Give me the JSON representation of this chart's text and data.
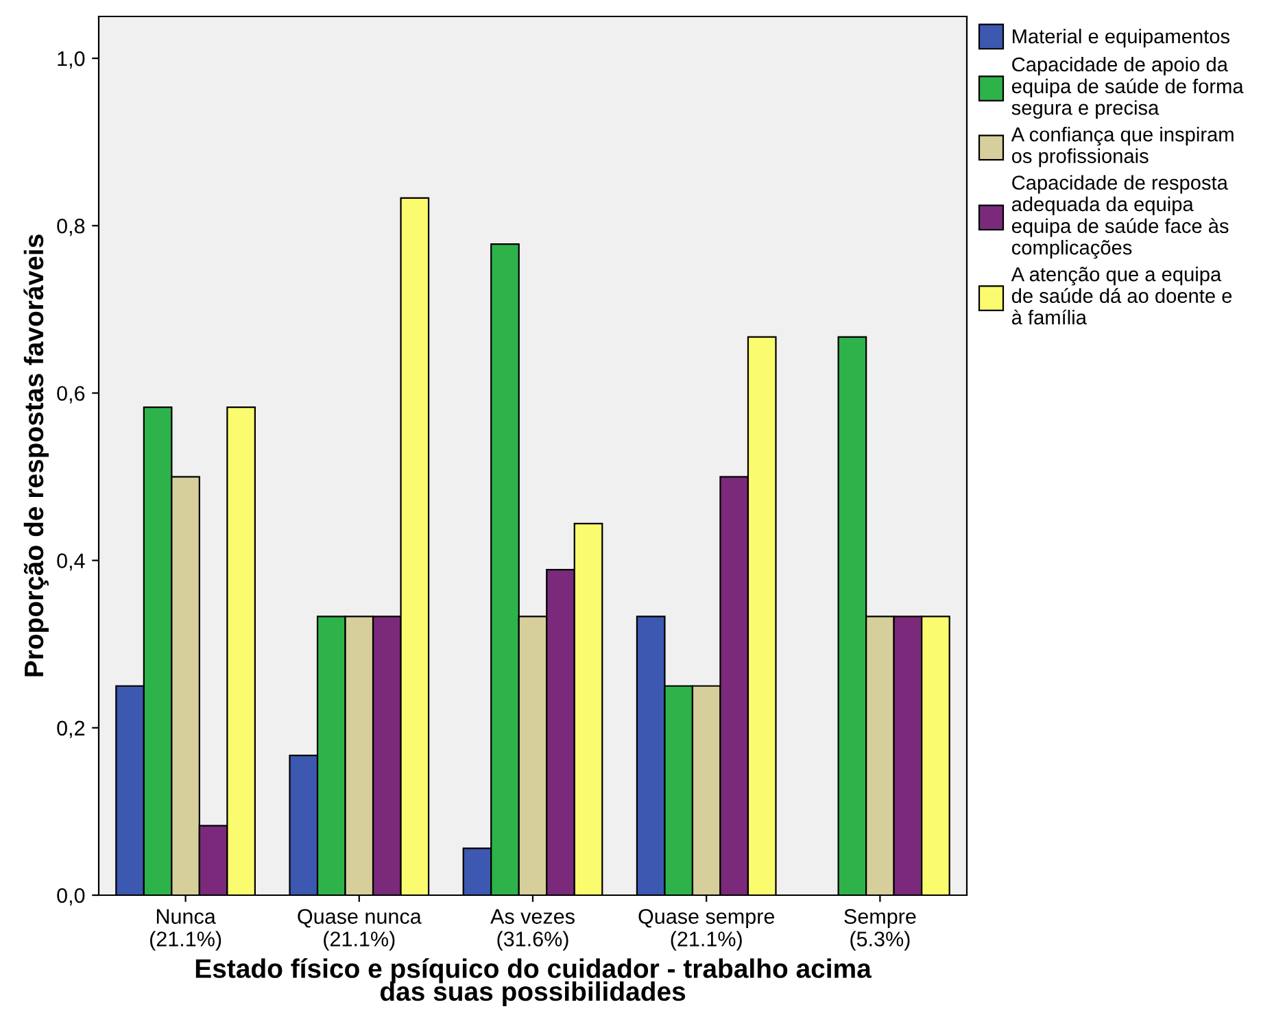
{
  "chart_data": {
    "type": "bar",
    "xlabel": "Estado físico e psíquico do cuidador - trabalho acima\ndas suas possibilidades",
    "ylabel": "Proporção de respostas favoráveis",
    "categories": [
      "Nunca\n(21.1%)",
      "Quase nunca\n(21.1%)",
      "As vezes\n(31.6%)",
      "Quase sempre\n(21.1%)",
      "Sempre\n(5.3%)"
    ],
    "series": [
      {
        "name": "Material e equipamentos",
        "color": "#3c58b0",
        "values": [
          0.25,
          0.167,
          0.056,
          0.333,
          null
        ]
      },
      {
        "name": "Capacidade de apoio da\nequipa de saúde de forma\nsegura e precisa",
        "color": "#2db34a",
        "values": [
          0.583,
          0.333,
          0.778,
          0.25,
          0.667
        ]
      },
      {
        "name": "A confiança que inspiram\nos profissionais",
        "color": "#d6cf9b",
        "values": [
          0.5,
          0.333,
          0.333,
          0.25,
          0.333
        ]
      },
      {
        "name": "Capacidade de resposta\nadequada da equipa\nequipa de saúde face às\ncomplicações",
        "color": "#7b2a7b",
        "values": [
          0.083,
          0.333,
          0.389,
          0.5,
          0.333
        ]
      },
      {
        "name": "A atenção que a equipa\nde saúde dá ao doente e\nà família",
        "color": "#fbfb70",
        "values": [
          0.583,
          0.833,
          0.444,
          0.667,
          0.333
        ]
      }
    ],
    "ylim": [
      0,
      1.05
    ],
    "yticks": [
      {
        "value": 0,
        "label": "0,0"
      },
      {
        "value": 0.2,
        "label": "0,2"
      },
      {
        "value": 0.4,
        "label": "0,4"
      },
      {
        "value": 0.6,
        "label": "0,6"
      },
      {
        "value": 0.8,
        "label": "0,8"
      },
      {
        "value": 1.0,
        "label": "1,0"
      }
    ],
    "grid": false,
    "legend": "top right"
  }
}
